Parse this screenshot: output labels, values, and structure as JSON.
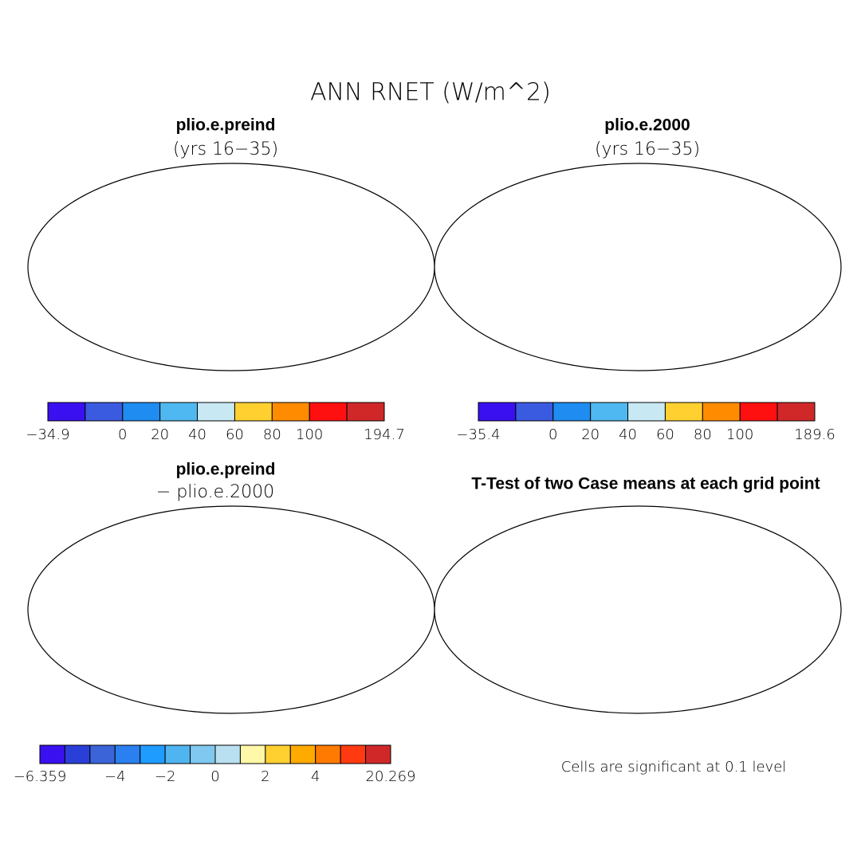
{
  "title": "ANN RNET (W/m^2)",
  "panels": [
    {
      "title": "plio.e.preind",
      "subtitle": "(yrs 16−35)",
      "colorbar": {
        "colors": [
          "#3a10f0",
          "#3a5ae0",
          "#1e8cf0",
          "#50b8f0",
          "#c8e8f4",
          "#ffd030",
          "#ff8c00",
          "#ff1010",
          "#d02828"
        ],
        "labels": [
          "−34.9",
          null,
          "0",
          "20",
          "40",
          "60",
          "80",
          "100",
          null,
          "194.7"
        ]
      }
    },
    {
      "title": "plio.e.2000",
      "subtitle": "(yrs 16−35)",
      "colorbar": {
        "colors": [
          "#3a10f0",
          "#3a5ae0",
          "#1e8cf0",
          "#50b8f0",
          "#c8e8f4",
          "#ffd030",
          "#ff8c00",
          "#ff1010",
          "#d02828"
        ],
        "labels": [
          "−35.4",
          null,
          "0",
          "20",
          "40",
          "60",
          "80",
          "100",
          null,
          "189.6"
        ]
      }
    },
    {
      "title": "plio.e.preind",
      "subtitle": "− plio.e.2000",
      "colorbar": {
        "colors": [
          "#3a10f0",
          "#2a3fd8",
          "#3a64d8",
          "#2a80f0",
          "#1e9cff",
          "#50b4f0",
          "#80c8f0",
          "#b8e0f0",
          "#fff8a8",
          "#ffd030",
          "#ffaa00",
          "#ff7a00",
          "#ff3a10",
          "#d02828"
        ],
        "labels": [
          "−6.359",
          null,
          null,
          "−4",
          null,
          "−2",
          null,
          "0",
          null,
          "2",
          null,
          "4",
          null,
          null,
          "20.269"
        ]
      }
    },
    {
      "title": "T-Test of two Case means at each grid point",
      "note": "Cells are significant at 0.1 level"
    }
  ]
}
